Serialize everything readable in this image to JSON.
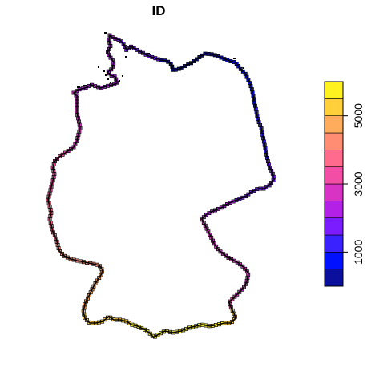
{
  "map": {
    "title": "ID",
    "legend": {
      "ticks": [
        "1000",
        "3000",
        "5000"
      ],
      "tick_values": [
        1000,
        3000,
        5000
      ],
      "range": [
        0,
        6000
      ],
      "colors": [
        "#0a0f9c",
        "#0011ff",
        "#3a22ff",
        "#7a1cff",
        "#b320e6",
        "#d733c5",
        "#f24ea6",
        "#ff6b8c",
        "#ff8d74",
        "#ffad5c",
        "#ffd03c",
        "#fff21f"
      ],
      "placement": "right"
    }
  }
}
